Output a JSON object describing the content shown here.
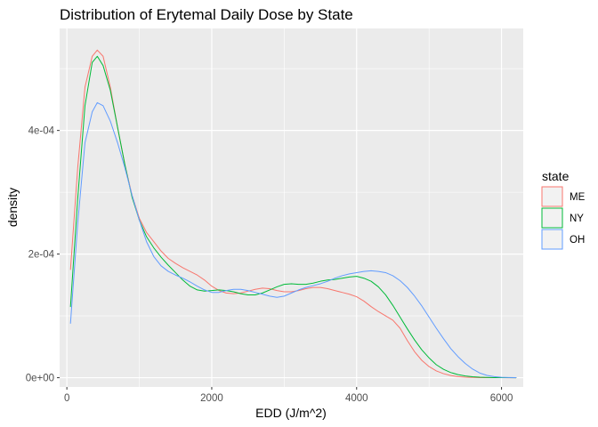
{
  "chart_data": {
    "type": "line",
    "title": "Distribution of Erytemal Daily Dose by State",
    "xlabel": "EDD (J/m^2)",
    "ylabel": "density",
    "xlim": [
      -100,
      6300
    ],
    "ylim": [
      -1.5e-05,
      0.000565
    ],
    "x_ticks": [
      0,
      2000,
      4000,
      6000
    ],
    "x_tick_labels": [
      "0",
      "2000",
      "4000",
      "6000"
    ],
    "y_ticks": [
      0,
      0.0002,
      0.0004
    ],
    "y_tick_labels": [
      "0e+00",
      "2e-04",
      "4e-04"
    ],
    "grid": true,
    "legend": {
      "title": "state",
      "placement": "right"
    },
    "series": [
      {
        "name": "ME",
        "color": "#F8766D",
        "x": [
          50,
          150,
          250,
          350,
          420,
          500,
          600,
          700,
          800,
          900,
          1000,
          1100,
          1200,
          1300,
          1400,
          1500,
          1600,
          1700,
          1800,
          1900,
          2000,
          2100,
          2200,
          2300,
          2400,
          2500,
          2600,
          2700,
          2800,
          2900,
          3000,
          3100,
          3200,
          3300,
          3400,
          3500,
          3600,
          3700,
          3800,
          3900,
          4000,
          4100,
          4200,
          4300,
          4400,
          4500,
          4600,
          4700,
          4800,
          4900,
          5000,
          5100,
          5200,
          5300,
          5400,
          5500,
          5600,
          5700,
          5800,
          5900,
          6000,
          6100,
          6200
        ],
        "y": [
          0.000175,
          0.00034,
          0.00047,
          0.00052,
          0.00053,
          0.00052,
          0.00047,
          0.000405,
          0.000345,
          0.000295,
          0.000258,
          0.000235,
          0.00022,
          0.000205,
          0.000193,
          0.000185,
          0.000178,
          0.000172,
          0.000166,
          0.000158,
          0.000148,
          0.000141,
          0.000137,
          0.000136,
          0.000137,
          0.00014,
          0.000143,
          0.000145,
          0.000144,
          0.000141,
          0.000139,
          0.000139,
          0.000141,
          0.000144,
          0.000146,
          0.000146,
          0.000144,
          0.000141,
          0.000138,
          0.000135,
          0.000131,
          0.000124,
          0.000115,
          0.000107,
          0.0001,
          9.3e-05,
          8e-05,
          6e-05,
          4.2e-05,
          2.8e-05,
          1.8e-05,
          1.1e-05,
          6.5e-06,
          3.5e-06,
          1.8e-06,
          9e-07,
          4e-07,
          2e-07,
          1e-07,
          5e-08,
          2e-08,
          1e-08,
          0.0
        ]
      },
      {
        "name": "NY",
        "color": "#00BA38",
        "x": [
          50,
          150,
          250,
          350,
          420,
          500,
          600,
          700,
          800,
          900,
          1000,
          1100,
          1200,
          1300,
          1400,
          1500,
          1600,
          1700,
          1800,
          1900,
          2000,
          2100,
          2200,
          2300,
          2400,
          2500,
          2600,
          2700,
          2800,
          2900,
          3000,
          3100,
          3200,
          3300,
          3400,
          3500,
          3600,
          3700,
          3800,
          3900,
          4000,
          4100,
          4200,
          4300,
          4400,
          4500,
          4600,
          4700,
          4800,
          4900,
          5000,
          5100,
          5200,
          5300,
          5400,
          5500,
          5600,
          5700,
          5800,
          5900,
          6000,
          6100,
          6200
        ],
        "y": [
          0.000115,
          0.00029,
          0.00044,
          0.00051,
          0.00052,
          0.000505,
          0.000465,
          0.000405,
          0.000345,
          0.000292,
          0.000255,
          0.000228,
          0.00021,
          0.000195,
          0.000182,
          0.00017,
          0.000158,
          0.000148,
          0.000142,
          0.00014,
          0.000141,
          0.000142,
          0.000141,
          0.000139,
          0.000136,
          0.000134,
          0.000134,
          0.000137,
          0.000142,
          0.000147,
          0.000151,
          0.000152,
          0.000151,
          0.000151,
          0.000153,
          0.000156,
          0.000158,
          0.000159,
          0.000161,
          0.000163,
          0.000164,
          0.000161,
          0.000156,
          0.000147,
          0.000134,
          0.000117,
          9.8e-05,
          7.9e-05,
          6.1e-05,
          4.5e-05,
          3.2e-05,
          2.1e-05,
          1.35e-05,
          8.3e-06,
          5e-06,
          2.8e-06,
          1.5e-06,
          8e-07,
          4e-07,
          2e-07,
          1e-07,
          5e-08,
          0.0
        ]
      },
      {
        "name": "OH",
        "color": "#619CFF",
        "x": [
          50,
          150,
          250,
          350,
          420,
          500,
          600,
          700,
          800,
          900,
          1000,
          1100,
          1200,
          1300,
          1400,
          1500,
          1600,
          1700,
          1800,
          1900,
          2000,
          2100,
          2200,
          2300,
          2400,
          2500,
          2600,
          2700,
          2800,
          2900,
          3000,
          3100,
          3200,
          3300,
          3400,
          3500,
          3600,
          3700,
          3800,
          3900,
          4000,
          4100,
          4200,
          4300,
          4400,
          4500,
          4600,
          4700,
          4800,
          4900,
          5000,
          5100,
          5200,
          5300,
          5400,
          5500,
          5600,
          5700,
          5800,
          5900,
          6000,
          6100,
          6200
        ],
        "y": [
          8.8e-05,
          0.00025,
          0.00038,
          0.00043,
          0.000445,
          0.00044,
          0.000415,
          0.00038,
          0.00034,
          0.000295,
          0.000255,
          0.00022,
          0.000196,
          0.000181,
          0.000172,
          0.000166,
          0.000161,
          0.000155,
          0.000148,
          0.000142,
          0.000138,
          0.000138,
          0.000141,
          0.000143,
          0.000143,
          0.000141,
          0.000138,
          0.000135,
          0.000132,
          0.00013,
          0.000132,
          0.000137,
          0.000142,
          0.000146,
          0.000149,
          0.000152,
          0.000156,
          0.000161,
          0.000165,
          0.000168,
          0.00017,
          0.000172,
          0.000173,
          0.000172,
          0.00017,
          0.000165,
          0.000157,
          0.000146,
          0.000132,
          0.000116,
          9.8e-05,
          8e-05,
          6.3e-05,
          4.7e-05,
          3.4e-05,
          2.3e-05,
          1.4e-05,
          7.5e-06,
          3.7e-06,
          1.7e-06,
          7e-07,
          3e-07,
          1e-07
        ]
      }
    ]
  }
}
